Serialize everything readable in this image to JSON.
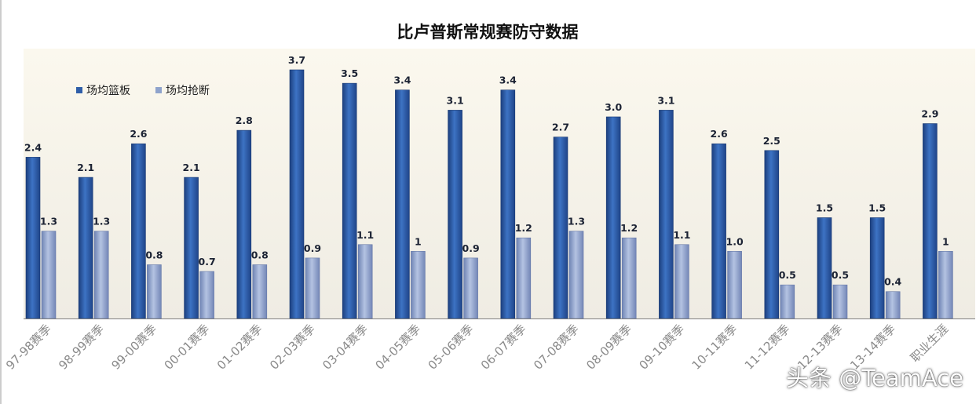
{
  "chart_data": {
    "type": "bar",
    "title": "比卢普斯常规赛防守数据",
    "categories": [
      "97-98赛季",
      "98-99赛季",
      "99-00赛季",
      "00-01赛季",
      "01-02赛季",
      "02-03赛季",
      "03-04赛季",
      "04-05赛季",
      "05-06赛季",
      "06-07赛季",
      "07-08赛季",
      "08-09赛季",
      "09-10赛季",
      "10-11赛季",
      "11-12赛季",
      "12-13赛季",
      "13-14赛季",
      "职业生涯"
    ],
    "series": [
      {
        "name": "场均篮板",
        "values": [
          2.4,
          2.1,
          2.6,
          2.1,
          2.8,
          3.7,
          3.5,
          3.4,
          3.1,
          3.4,
          2.7,
          3.0,
          3.1,
          2.6,
          2.5,
          1.5,
          1.5,
          2.9
        ],
        "labels": [
          "2.4",
          "2.1",
          "2.6",
          "2.1",
          "2.8",
          "3.7",
          "3.5",
          "3.4",
          "3.1",
          "3.4",
          "2.7",
          "3.0",
          "3.1",
          "2.6",
          "2.5",
          "1.5",
          "1.5",
          "2.9"
        ],
        "color": "#2f5ea8"
      },
      {
        "name": "场均抢断",
        "values": [
          1.3,
          1.3,
          0.8,
          0.7,
          0.8,
          0.9,
          1.1,
          1.0,
          0.9,
          1.2,
          1.3,
          1.2,
          1.1,
          1.0,
          0.5,
          0.5,
          0.4,
          1.0
        ],
        "labels": [
          "1.3",
          "1.3",
          "0.8",
          "0.7",
          "0.8",
          "0.9",
          "1.1",
          "1",
          "0.9",
          "1.2",
          "1.3",
          "1.2",
          "1.1",
          "1.0",
          "0.5",
          "0.5",
          "0.4",
          "1"
        ],
        "color": "#8fa3cc"
      }
    ],
    "ylim": [
      0,
      3.7
    ],
    "grid": false,
    "legend": "top-left"
  },
  "watermark": "头条 @TeamAce"
}
